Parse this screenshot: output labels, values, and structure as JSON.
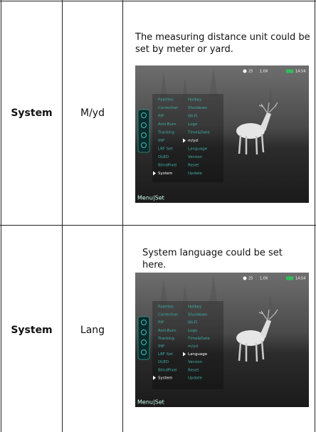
{
  "rows": [
    {
      "module": "System",
      "item": "M/yd",
      "description": "The measuring distance unit could be set by meter or yard."
    },
    {
      "module": "System",
      "item": "Lang",
      "description": "System language could be set here."
    }
  ],
  "device_screen": {
    "status": [
      "25",
      "1.0X",
      "14:54"
    ],
    "menu_left": [
      "Palettes",
      "Correction",
      "PIP",
      "Anti-Burn",
      "Tracking",
      "IHP",
      "LRF Set",
      "OLED",
      "BlindPixel",
      "System"
    ],
    "menu_right": [
      "Hotkey",
      "Shutdown",
      "Wi-Fi",
      "Logo",
      "Time&Date",
      "m/yd",
      "Language",
      "Version",
      "Reset",
      "Update"
    ],
    "footer": "Menu|Set"
  }
}
